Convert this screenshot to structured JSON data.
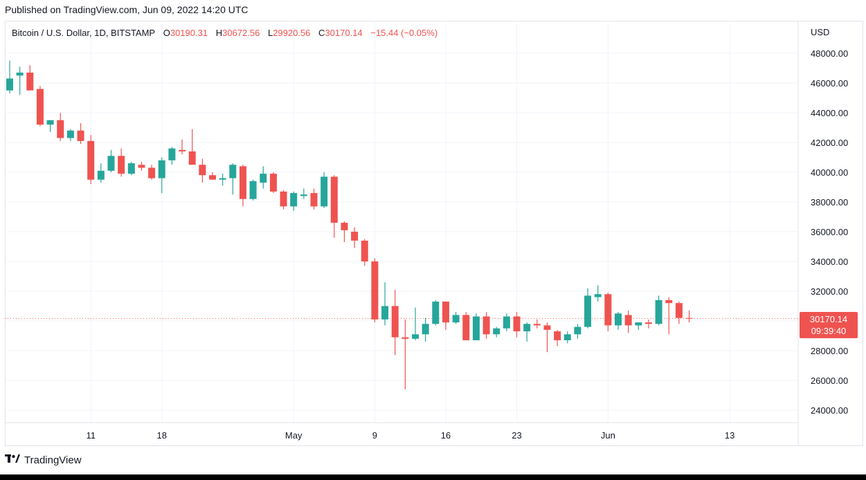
{
  "header": {
    "published": "Published on TradingView.com, Jun 09, 2022 14:20 UTC"
  },
  "legend": {
    "symbol": "Bitcoin / U.S. Dollar, 1D, BITSTAMP",
    "open_label": "O",
    "open": "30190.31",
    "high_label": "H",
    "high": "30672.56",
    "low_label": "L",
    "low": "29920.56",
    "close_label": "C",
    "close": "30170.14",
    "change": "−15.44 (−0.05%)"
  },
  "axis": {
    "currency": "USD"
  },
  "price_badge": {
    "price": "30170.14",
    "countdown": "09:39:40"
  },
  "footer": {
    "brand": "TradingView"
  },
  "colors": {
    "up": "#26a69a",
    "down": "#ef5350",
    "grid": "#f0f3fa"
  },
  "chart_data": {
    "type": "candlestick",
    "y_ticks": [
      "48000.00",
      "46000.00",
      "44000.00",
      "42000.00",
      "40000.00",
      "38000.00",
      "36000.00",
      "34000.00",
      "32000.00",
      "30000.00",
      "28000.00",
      "26000.00",
      "24000.00"
    ],
    "y_tick_values": [
      48000,
      46000,
      44000,
      42000,
      40000,
      38000,
      36000,
      34000,
      32000,
      30000,
      28000,
      26000,
      24000
    ],
    "ylim": [
      23000,
      49000
    ],
    "x_ticks": [
      {
        "label": "11",
        "index": 8
      },
      {
        "label": "18",
        "index": 15
      },
      {
        "label": "May",
        "index": 28
      },
      {
        "label": "9",
        "index": 36
      },
      {
        "label": "16",
        "index": 43
      },
      {
        "label": "23",
        "index": 50
      },
      {
        "label": "Jun",
        "index": 59
      },
      {
        "label": "13",
        "index": 71
      }
    ],
    "last_price": 30170.14,
    "candles": [
      {
        "o": 45500,
        "h": 47500,
        "l": 45300,
        "c": 46300
      },
      {
        "o": 46500,
        "h": 47100,
        "l": 45200,
        "c": 46700
      },
      {
        "o": 46700,
        "h": 47200,
        "l": 45600,
        "c": 45500
      },
      {
        "o": 45600,
        "h": 45800,
        "l": 43100,
        "c": 43200
      },
      {
        "o": 43200,
        "h": 43500,
        "l": 42700,
        "c": 43500
      },
      {
        "o": 43500,
        "h": 44000,
        "l": 42100,
        "c": 42300
      },
      {
        "o": 42300,
        "h": 42900,
        "l": 42100,
        "c": 42800
      },
      {
        "o": 42800,
        "h": 43300,
        "l": 41900,
        "c": 42100
      },
      {
        "o": 42100,
        "h": 42500,
        "l": 39200,
        "c": 39500
      },
      {
        "o": 39500,
        "h": 40600,
        "l": 39300,
        "c": 40100
      },
      {
        "o": 40100,
        "h": 41500,
        "l": 40000,
        "c": 41100
      },
      {
        "o": 41100,
        "h": 41600,
        "l": 39700,
        "c": 39900
      },
      {
        "o": 39900,
        "h": 40700,
        "l": 39800,
        "c": 40600
      },
      {
        "o": 40500,
        "h": 40700,
        "l": 40100,
        "c": 40300
      },
      {
        "o": 40300,
        "h": 40500,
        "l": 39500,
        "c": 39600
      },
      {
        "o": 39600,
        "h": 41000,
        "l": 38600,
        "c": 40800
      },
      {
        "o": 40800,
        "h": 41700,
        "l": 40500,
        "c": 41600
      },
      {
        "o": 41500,
        "h": 42200,
        "l": 41200,
        "c": 41400
      },
      {
        "o": 41400,
        "h": 42900,
        "l": 40700,
        "c": 40500
      },
      {
        "o": 40500,
        "h": 40900,
        "l": 39300,
        "c": 39800
      },
      {
        "o": 39800,
        "h": 40000,
        "l": 39500,
        "c": 39500
      },
      {
        "o": 39500,
        "h": 39900,
        "l": 39100,
        "c": 39600
      },
      {
        "o": 39600,
        "h": 40600,
        "l": 38500,
        "c": 40500
      },
      {
        "o": 40400,
        "h": 40500,
        "l": 37700,
        "c": 38200
      },
      {
        "o": 38200,
        "h": 39500,
        "l": 38100,
        "c": 39400
      },
      {
        "o": 39300,
        "h": 40400,
        "l": 38900,
        "c": 39900
      },
      {
        "o": 39900,
        "h": 40000,
        "l": 38600,
        "c": 38700
      },
      {
        "o": 38700,
        "h": 38800,
        "l": 37500,
        "c": 37700
      },
      {
        "o": 37700,
        "h": 38700,
        "l": 37400,
        "c": 38600
      },
      {
        "o": 38400,
        "h": 38900,
        "l": 38200,
        "c": 38500
      },
      {
        "o": 38600,
        "h": 38900,
        "l": 37500,
        "c": 37700
      },
      {
        "o": 37700,
        "h": 40000,
        "l": 37600,
        "c": 39700
      },
      {
        "o": 39700,
        "h": 39800,
        "l": 35600,
        "c": 36600
      },
      {
        "o": 36600,
        "h": 36700,
        "l": 35300,
        "c": 36100
      },
      {
        "o": 36000,
        "h": 36300,
        "l": 34900,
        "c": 35400
      },
      {
        "o": 35400,
        "h": 35500,
        "l": 33700,
        "c": 34000
      },
      {
        "o": 34000,
        "h": 34200,
        "l": 29900,
        "c": 30100
      },
      {
        "o": 30100,
        "h": 32600,
        "l": 29700,
        "c": 31000
      },
      {
        "o": 31000,
        "h": 32100,
        "l": 27700,
        "c": 28900
      },
      {
        "o": 28900,
        "h": 30100,
        "l": 25400,
        "c": 28800
      },
      {
        "o": 28800,
        "h": 30900,
        "l": 28700,
        "c": 29100
      },
      {
        "o": 29100,
        "h": 30200,
        "l": 28600,
        "c": 29800
      },
      {
        "o": 29800,
        "h": 31400,
        "l": 29700,
        "c": 31300
      },
      {
        "o": 31300,
        "h": 31300,
        "l": 29400,
        "c": 29900
      },
      {
        "o": 29900,
        "h": 30600,
        "l": 29800,
        "c": 30400
      },
      {
        "o": 30400,
        "h": 30600,
        "l": 28700,
        "c": 28700
      },
      {
        "o": 28700,
        "h": 30500,
        "l": 28700,
        "c": 30300
      },
      {
        "o": 30300,
        "h": 30600,
        "l": 28800,
        "c": 29100
      },
      {
        "o": 29100,
        "h": 29600,
        "l": 28900,
        "c": 29500
      },
      {
        "o": 29500,
        "h": 30500,
        "l": 29300,
        "c": 30300
      },
      {
        "o": 30300,
        "h": 30600,
        "l": 28900,
        "c": 29300
      },
      {
        "o": 29300,
        "h": 29900,
        "l": 28600,
        "c": 29800
      },
      {
        "o": 29800,
        "h": 30100,
        "l": 29500,
        "c": 29700
      },
      {
        "o": 29700,
        "h": 29900,
        "l": 27900,
        "c": 29400
      },
      {
        "o": 29300,
        "h": 29400,
        "l": 28300,
        "c": 28700
      },
      {
        "o": 28700,
        "h": 29300,
        "l": 28500,
        "c": 29100
      },
      {
        "o": 29100,
        "h": 29800,
        "l": 28800,
        "c": 29600
      },
      {
        "o": 29600,
        "h": 32200,
        "l": 29500,
        "c": 31700
      },
      {
        "o": 31600,
        "h": 32400,
        "l": 31300,
        "c": 31800
      },
      {
        "o": 31800,
        "h": 31900,
        "l": 29300,
        "c": 29700
      },
      {
        "o": 29700,
        "h": 30600,
        "l": 29400,
        "c": 30500
      },
      {
        "o": 30400,
        "h": 30700,
        "l": 29200,
        "c": 29700
      },
      {
        "o": 29700,
        "h": 29900,
        "l": 29400,
        "c": 29900
      },
      {
        "o": 29900,
        "h": 30100,
        "l": 29500,
        "c": 29800
      },
      {
        "o": 29800,
        "h": 31700,
        "l": 29700,
        "c": 31400
      },
      {
        "o": 31400,
        "h": 31600,
        "l": 29100,
        "c": 31200
      },
      {
        "o": 31200,
        "h": 31300,
        "l": 29800,
        "c": 30200
      },
      {
        "o": 30200,
        "h": 30700,
        "l": 29900,
        "c": 30170
      }
    ]
  }
}
